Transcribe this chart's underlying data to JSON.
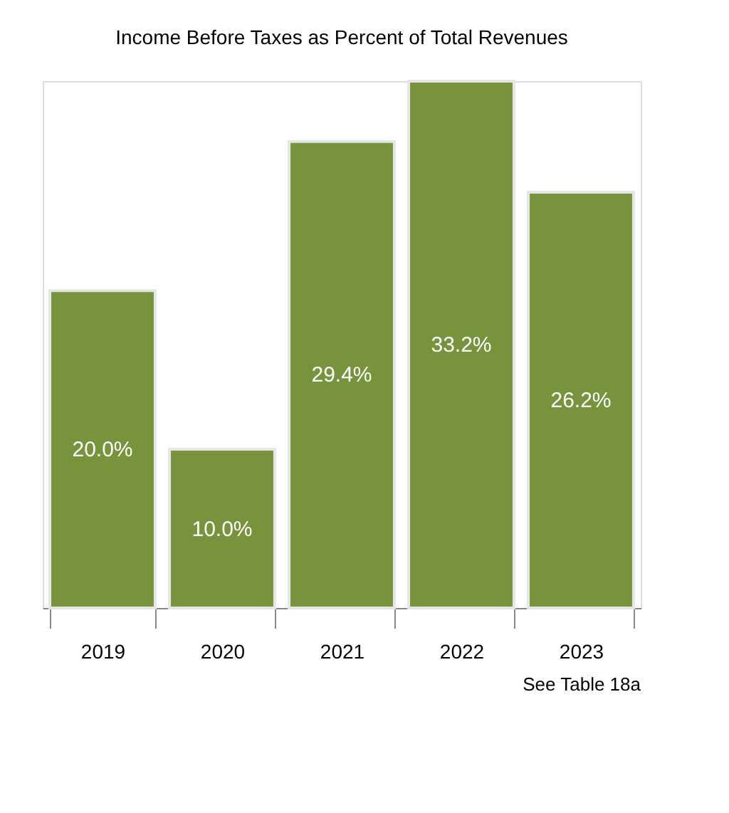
{
  "chart_data": {
    "type": "bar",
    "title": "Income Before Taxes as Percent of Total Revenues",
    "categories": [
      "2019",
      "2020",
      "2021",
      "2022",
      "2023"
    ],
    "values": [
      20.0,
      10.0,
      29.4,
      33.2,
      26.2
    ],
    "value_labels": [
      "20.0%",
      "10.0%",
      "29.4%",
      "33.2%",
      "26.2%"
    ],
    "color": "#77933c",
    "annotations": [
      "See Table 18a"
    ],
    "grid": false
  }
}
